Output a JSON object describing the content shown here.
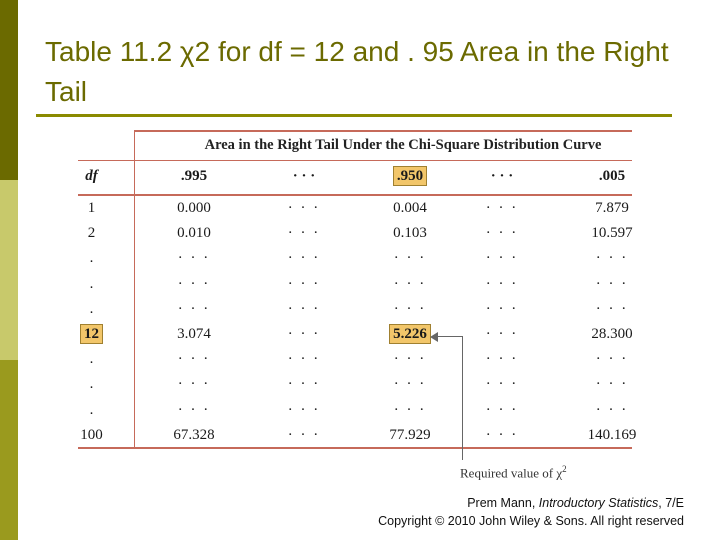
{
  "slide": {
    "title": "Table 11.2 χ2 for df = 12 and . 95 Area in the Right Tail",
    "accent_color": "#6b6a00"
  },
  "table": {
    "caption": "Area in the Right Tail Under the Chi-Square Distribution Curve",
    "df_header": "df",
    "columns": [
      ".995",
      "· · ·",
      ".950",
      "· · ·",
      ".005"
    ],
    "highlight_color": "#f2c66a",
    "rows": [
      {
        "df": "1",
        "cells": [
          "0.000",
          "· · ·",
          "0.004",
          "· · ·",
          "7.879"
        ]
      },
      {
        "df": "2",
        "cells": [
          "0.010",
          "· · ·",
          "0.103",
          "· · ·",
          "10.597"
        ]
      },
      {
        "df": ".",
        "cells": [
          "· · ·",
          "· · ·",
          "· · ·",
          "· · ·",
          "· · ·"
        ]
      },
      {
        "df": ".",
        "cells": [
          "· · ·",
          "· · ·",
          "· · ·",
          "· · ·",
          "· · ·"
        ]
      },
      {
        "df": ".",
        "cells": [
          "· · ·",
          "· · ·",
          "· · ·",
          "· · ·",
          "· · ·"
        ]
      },
      {
        "df": "12",
        "cells": [
          "3.074",
          "· · ·",
          "5.226",
          "· · ·",
          "28.300"
        ]
      },
      {
        "df": ".",
        "cells": [
          "· · ·",
          "· · ·",
          "· · ·",
          "· · ·",
          "· · ·"
        ]
      },
      {
        "df": ".",
        "cells": [
          "· · ·",
          "· · ·",
          "· · ·",
          "· · ·",
          "· · ·"
        ]
      },
      {
        "df": ".",
        "cells": [
          "· · ·",
          "· · ·",
          "· · ·",
          "· · ·",
          "· · ·"
        ]
      },
      {
        "df": "100",
        "cells": [
          "67.328",
          "· · ·",
          "77.929",
          "· · ·",
          "140.169"
        ]
      }
    ],
    "callout": "Required value of χ",
    "callout_sup": "2"
  },
  "credit": {
    "line1_prefix": "Prem Mann, ",
    "line1_book": "Introductory Statistics",
    "line1_suffix": ", 7/E",
    "line2": "Copyright © 2010 John Wiley & Sons. All right reserved"
  }
}
